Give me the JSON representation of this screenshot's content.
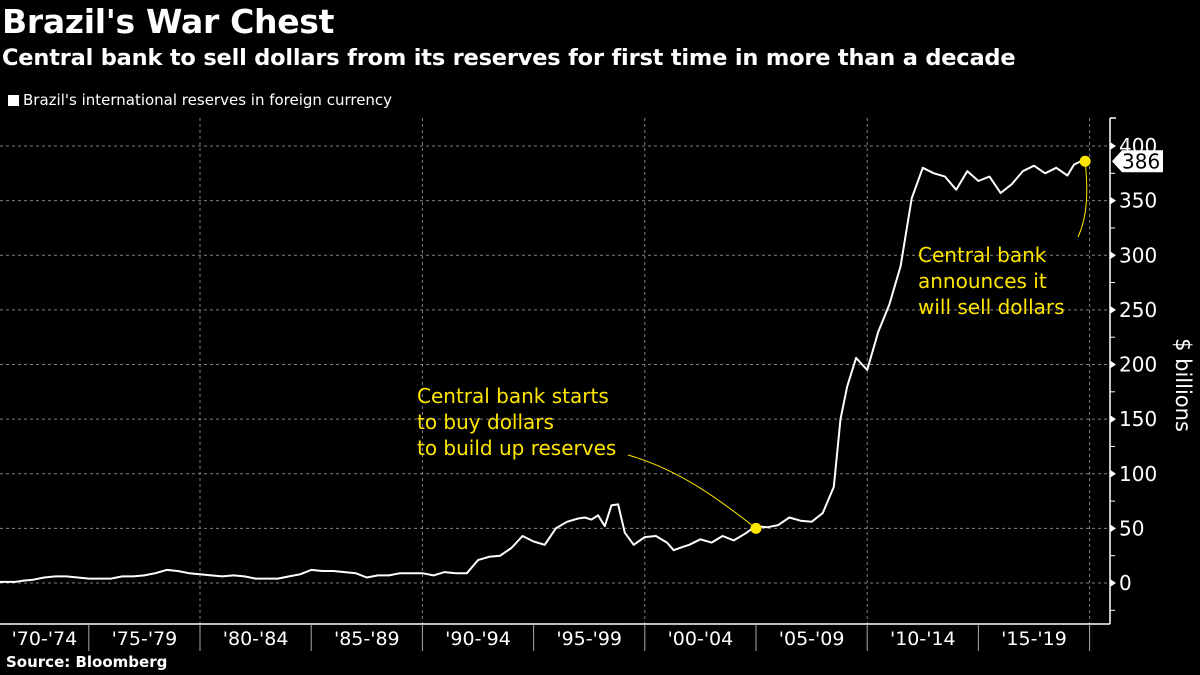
{
  "header": {
    "title": "Brazil's War Chest",
    "subtitle": "Central bank to sell dollars from its reserves for first time in more than a decade"
  },
  "legend": {
    "label": "Brazil's international reserves in foreign currency"
  },
  "footer": {
    "source": "Source: Bloomberg"
  },
  "colors": {
    "background": "#000000",
    "line": "#ffffff",
    "annotation": "#ffe600",
    "grid": "#808080"
  },
  "chart_data": {
    "type": "line",
    "title": "Brazil's War Chest",
    "subtitle": "Central bank to sell dollars from its reserves for first time in more than a decade",
    "xlabel": "",
    "ylabel": "$ billions",
    "xlim": [
      1971,
      2021
    ],
    "ylim": [
      -40,
      420
    ],
    "y_ticks": [
      0,
      50,
      100,
      150,
      200,
      250,
      300,
      350,
      400
    ],
    "x_tick_labels": [
      "'70-'74",
      "'75-'79",
      "'80-'84",
      "'85-'89",
      "'90-'94",
      "'95-'99",
      "'00-'04",
      "'05-'09",
      "'10-'14",
      "'15-'19"
    ],
    "x_tick_periods": [
      [
        1970,
        1975
      ],
      [
        1975,
        1980
      ],
      [
        1980,
        1985
      ],
      [
        1985,
        1990
      ],
      [
        1990,
        1995
      ],
      [
        1995,
        2000
      ],
      [
        2000,
        2005
      ],
      [
        2005,
        2010
      ],
      [
        2010,
        2015
      ],
      [
        2015,
        2020
      ]
    ],
    "grid": true,
    "legend_position": "top-left",
    "series": [
      {
        "name": "Brazil's international reserves in foreign currency",
        "x": [
          1971.0,
          1971.7,
          1972.0,
          1972.5,
          1973.0,
          1973.5,
          1974.0,
          1974.5,
          1975.0,
          1975.5,
          1976.0,
          1976.5,
          1977.0,
          1977.5,
          1978.0,
          1978.5,
          1979.0,
          1979.5,
          1980.0,
          1980.5,
          1981.0,
          1981.5,
          1982.0,
          1982.5,
          1983.0,
          1983.5,
          1984.0,
          1984.5,
          1985.0,
          1985.5,
          1986.0,
          1986.5,
          1987.0,
          1987.5,
          1988.0,
          1988.5,
          1989.0,
          1989.5,
          1990.0,
          1990.5,
          1991.0,
          1991.5,
          1992.0,
          1992.5,
          1993.0,
          1993.5,
          1994.0,
          1994.5,
          1995.0,
          1995.5,
          1996.0,
          1996.5,
          1997.0,
          1997.3,
          1997.6,
          1997.9,
          1998.2,
          1998.5,
          1998.8,
          1999.1,
          1999.5,
          2000.0,
          2000.5,
          2001.0,
          2001.3,
          2001.7,
          2002.0,
          2002.5,
          2003.0,
          2003.5,
          2004.0,
          2004.5,
          2005.0,
          2005.5,
          2006.0,
          2006.5,
          2007.0,
          2007.5,
          2008.0,
          2008.5,
          2008.8,
          2009.1,
          2009.5,
          2010.0,
          2010.5,
          2011.0,
          2011.5,
          2012.0,
          2012.5,
          2013.0,
          2013.5,
          2014.0,
          2014.5,
          2015.0,
          2015.5,
          2016.0,
          2016.5,
          2017.0,
          2017.5,
          2018.0,
          2018.5,
          2019.0,
          2019.3,
          2019.6,
          2019.8
        ],
        "values": [
          1,
          1,
          2,
          3,
          5,
          6,
          6,
          5,
          4,
          4,
          4,
          6,
          6,
          7,
          9,
          12,
          11,
          9,
          8,
          7,
          6,
          7,
          6,
          4,
          4,
          4,
          6,
          8,
          12,
          11,
          11,
          10,
          9,
          5,
          7,
          7,
          9,
          9,
          9,
          7,
          10,
          9,
          9,
          21,
          24,
          25,
          32,
          43,
          38,
          35,
          50,
          56,
          59,
          60,
          58,
          62,
          52,
          71,
          72,
          46,
          35,
          42,
          43,
          37,
          30,
          33,
          35,
          40,
          37,
          43,
          39,
          45,
          52,
          51,
          53,
          60,
          57,
          56,
          64,
          88,
          150,
          180,
          206,
          195,
          230,
          255,
          290,
          352,
          380,
          375,
          372,
          360,
          377,
          368,
          372,
          357,
          365,
          377,
          382,
          375,
          380,
          373,
          383,
          386,
          386
        ],
        "color": "#ffffff"
      }
    ],
    "highlight_points": [
      {
        "x": 2005.0,
        "y": 50,
        "label": "start_buying"
      },
      {
        "x": 2019.8,
        "y": 386,
        "label": "latest"
      }
    ],
    "latest_value_label": "386",
    "annotations": [
      {
        "lines": [
          "Central bank starts",
          "to buy dollars",
          "to build up reserves"
        ]
      },
      {
        "lines": [
          "Central bank",
          "announces it",
          "will sell dollars"
        ]
      }
    ]
  }
}
